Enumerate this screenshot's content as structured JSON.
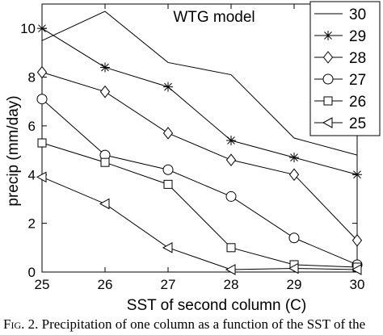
{
  "chart_data": {
    "type": "line",
    "title": "WTG model",
    "xlabel": "SST of second column (C)",
    "ylabel": "precip (mm/day)",
    "xlim": [
      25,
      30
    ],
    "ylim": [
      0,
      11
    ],
    "xticks": [
      "25",
      "26",
      "27",
      "28",
      "29",
      "30"
    ],
    "yticks": [
      "0",
      "2",
      "4",
      "6",
      "8",
      "10"
    ],
    "grid": false,
    "legend_position": "top-right",
    "x": [
      25,
      26,
      27,
      28,
      29,
      30
    ],
    "series": [
      {
        "name": "30",
        "marker": "none",
        "values": [
          9.5,
          10.7,
          8.6,
          8.1,
          5.5,
          4.8
        ]
      },
      {
        "name": "29",
        "marker": "star",
        "values": [
          10.0,
          8.4,
          7.6,
          5.4,
          4.7,
          4.0
        ]
      },
      {
        "name": "28",
        "marker": "diamond",
        "values": [
          8.2,
          7.4,
          5.7,
          4.6,
          4.0,
          1.3
        ]
      },
      {
        "name": "27",
        "marker": "circle",
        "values": [
          7.1,
          4.8,
          4.2,
          3.1,
          1.4,
          0.3
        ]
      },
      {
        "name": "26",
        "marker": "square",
        "values": [
          5.3,
          4.5,
          3.6,
          1.0,
          0.3,
          0.2
        ]
      },
      {
        "name": "25",
        "marker": "triangle",
        "values": [
          3.9,
          2.8,
          1.0,
          0.1,
          0.15,
          0.1
        ]
      }
    ]
  },
  "caption": {
    "label": "Fig. 2.",
    "text": "Precipitation of one column as a function of the SST of the"
  }
}
